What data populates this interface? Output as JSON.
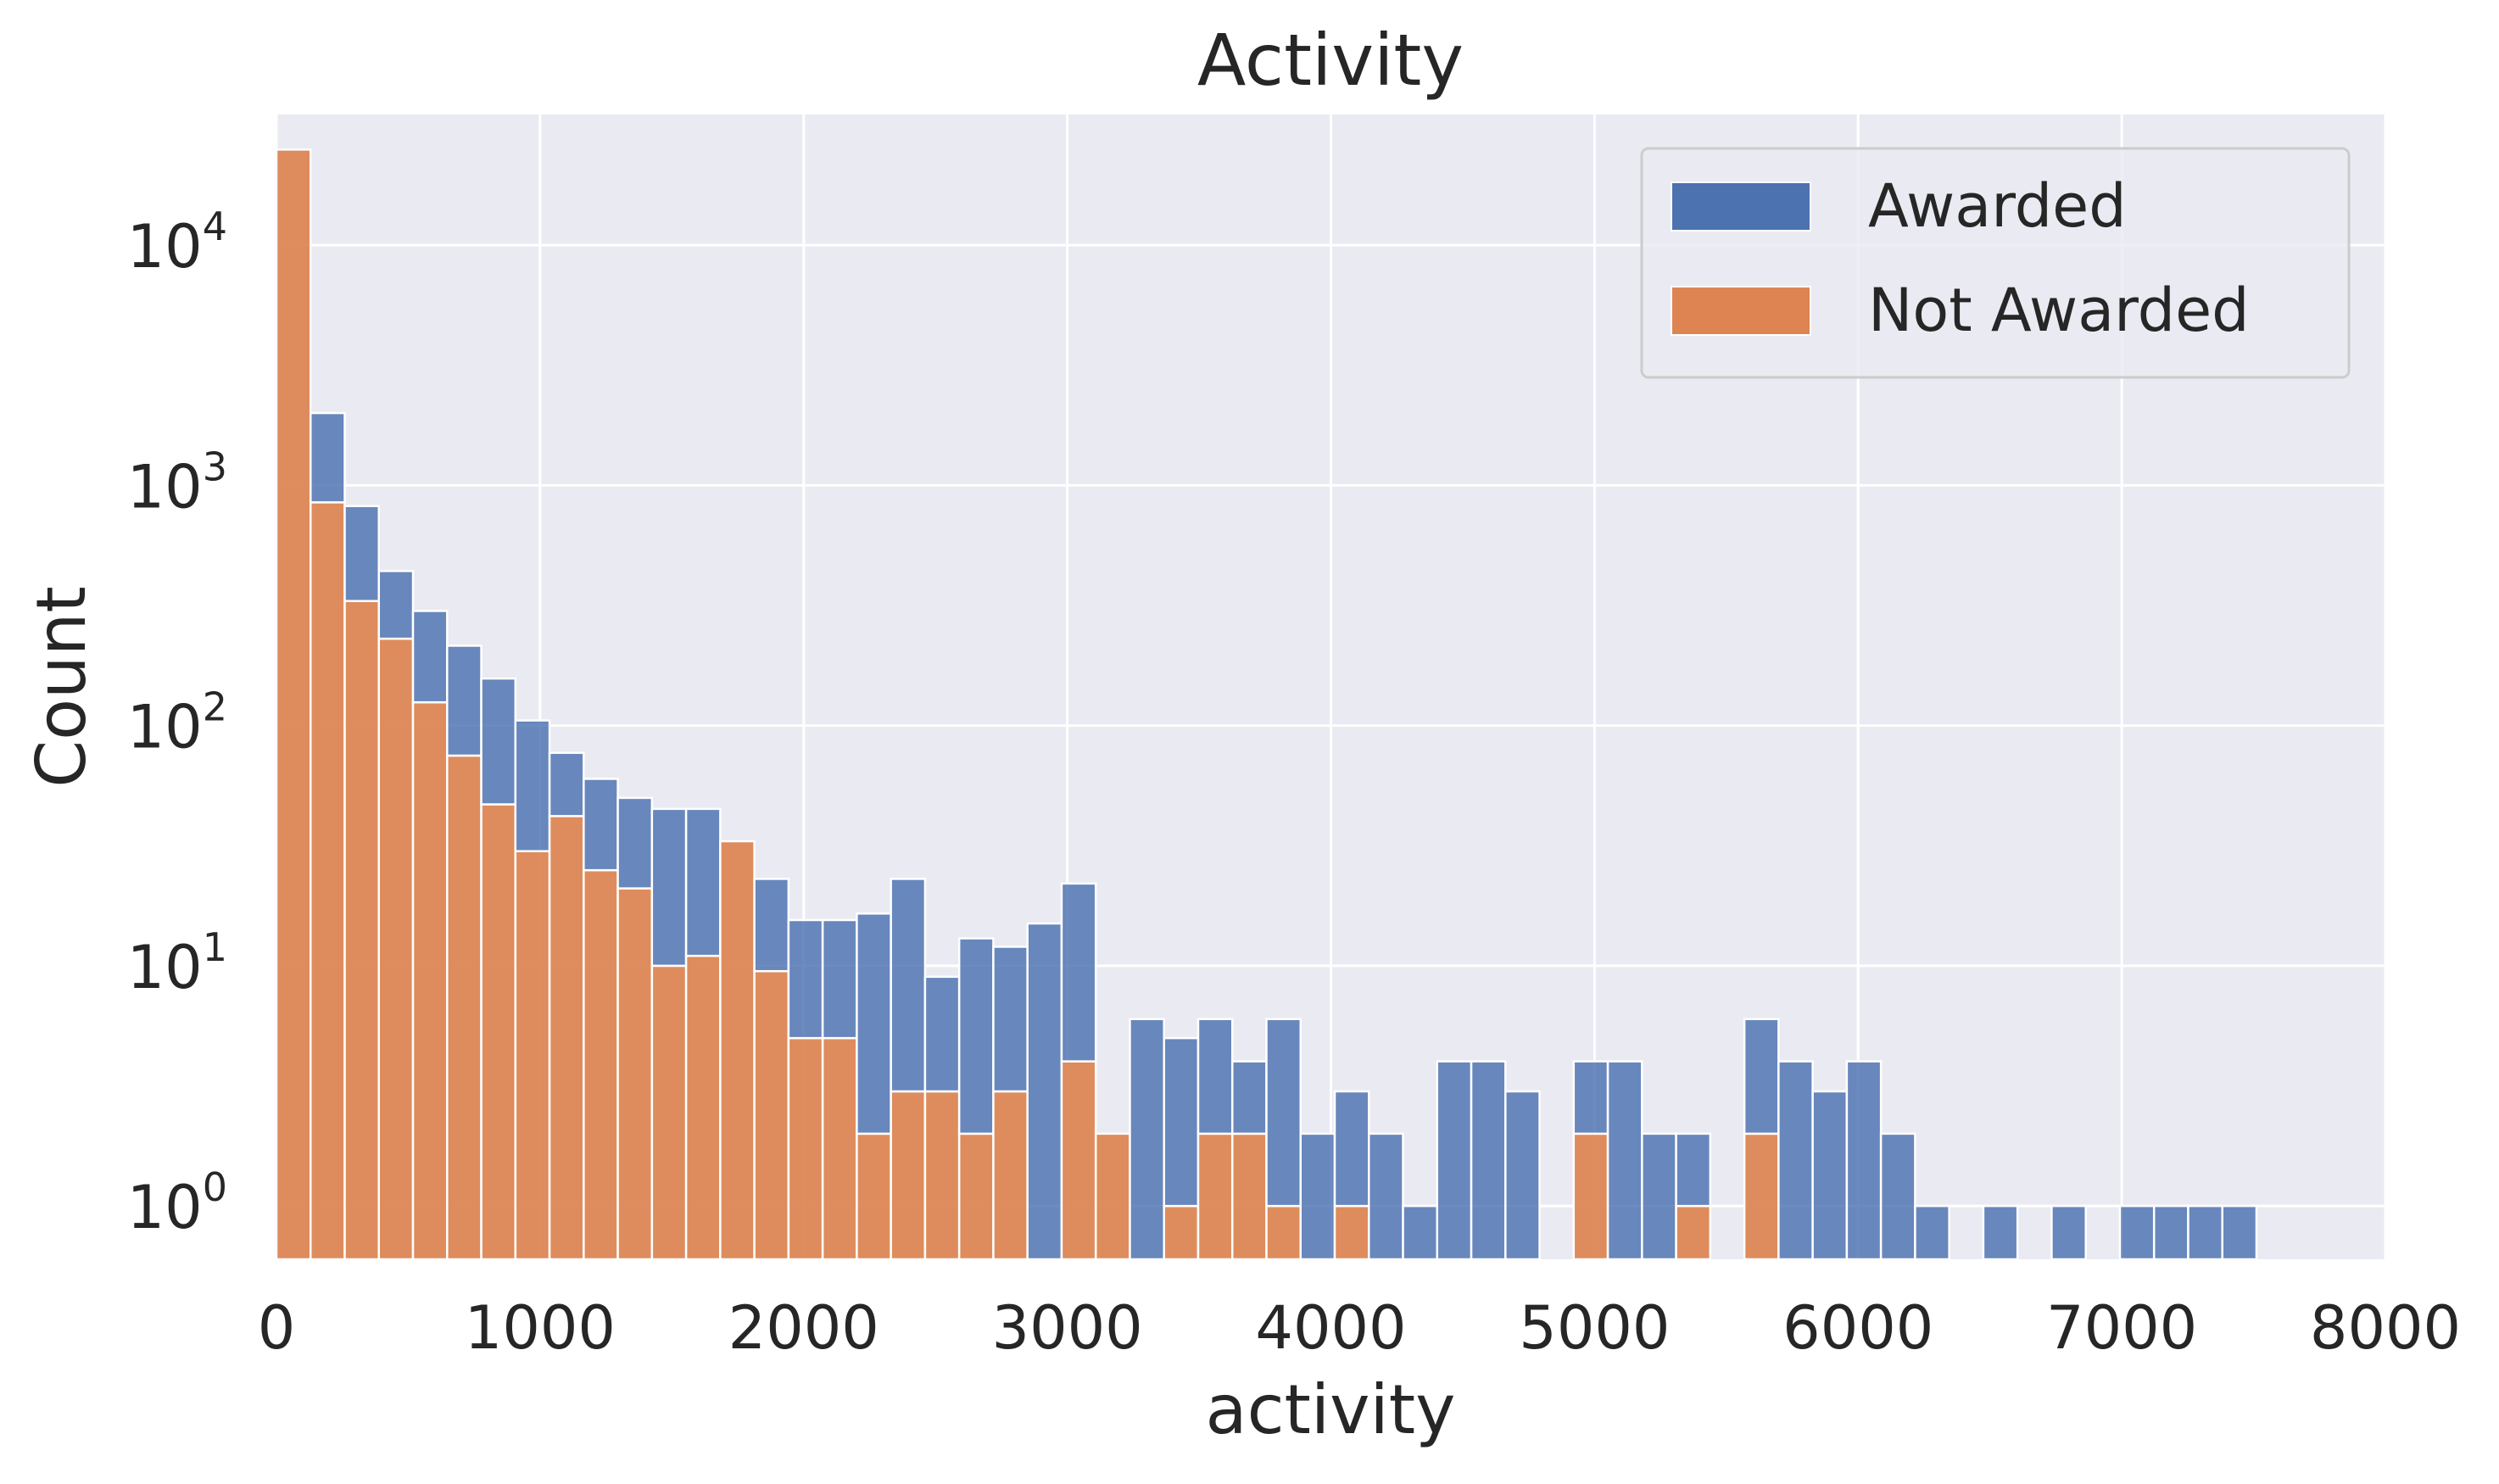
{
  "chart_data": {
    "type": "bar",
    "subtype": "stacked-histogram",
    "title": "Activity",
    "xlabel": "activity",
    "ylabel": "Count",
    "xlim": [
      0,
      8000
    ],
    "ylim": [
      0.6,
      35000
    ],
    "yscale": "log",
    "grid": true,
    "legend_position": "top-right",
    "x_ticks": [
      "0",
      "1000",
      "2000",
      "3000",
      "4000",
      "5000",
      "6000",
      "7000",
      "8000"
    ],
    "y_ticks": [
      {
        "value": 1,
        "base": "10",
        "exp": "0"
      },
      {
        "value": 10,
        "base": "10",
        "exp": "1"
      },
      {
        "value": 100,
        "base": "10",
        "exp": "2"
      },
      {
        "value": 1000,
        "base": "10",
        "exp": "3"
      },
      {
        "value": 10000,
        "base": "10",
        "exp": "4"
      }
    ],
    "bin_width": 129.5,
    "bin_starts": [
      0,
      129.5,
      259,
      388.5,
      518,
      647.5,
      777,
      906.5,
      1036,
      1165.5,
      1295,
      1424.5,
      1554,
      1683.5,
      1813,
      1942.5,
      2072,
      2201.5,
      2331,
      2460.5,
      2590,
      2719.5,
      2849,
      2978.5,
      3108,
      3237.5,
      3367,
      3496.5,
      3626,
      3755.5,
      3885,
      4014.5,
      4144,
      4273.5,
      4403,
      4532.5,
      4662,
      4791.5,
      4921,
      5050.5,
      5180,
      5309.5,
      5439,
      5568.5,
      5698,
      5827.5,
      5957,
      6086.5,
      6216,
      6345.5,
      6475,
      6604.5,
      6734,
      6863.5,
      6993,
      7122.5,
      7252,
      7381.5
    ],
    "series": [
      {
        "name": "Not Awarded",
        "color": "#dd8452",
        "values": [
          25000,
          850,
          330,
          230,
          125,
          75,
          47,
          30,
          42,
          25,
          21,
          10,
          11,
          33,
          9.5,
          5,
          5,
          2,
          3,
          3,
          2,
          3,
          0,
          4,
          2,
          0,
          1,
          2,
          2,
          1,
          0,
          1,
          0,
          0,
          0,
          0,
          0,
          0,
          2,
          0,
          0,
          1,
          0,
          2,
          0,
          0,
          0,
          0,
          0,
          0,
          0,
          0,
          0,
          0,
          0,
          0,
          0,
          0
        ]
      },
      {
        "name": "Awarded",
        "color": "#4c72b0",
        "values": [
          0,
          1150,
          490,
          210,
          175,
          140,
          110,
          75,
          35,
          35,
          29,
          35,
          34,
          0,
          13.5,
          10.5,
          10.5,
          14.5,
          20,
          6,
          11,
          9,
          15,
          18,
          0,
          6,
          4,
          4,
          2,
          5,
          2,
          2,
          2,
          1,
          4,
          4,
          3,
          0,
          2,
          4,
          2,
          1,
          0,
          4,
          4,
          3,
          4,
          2,
          1,
          0,
          1,
          0,
          1,
          0,
          1,
          1,
          1,
          1
        ]
      }
    ]
  }
}
